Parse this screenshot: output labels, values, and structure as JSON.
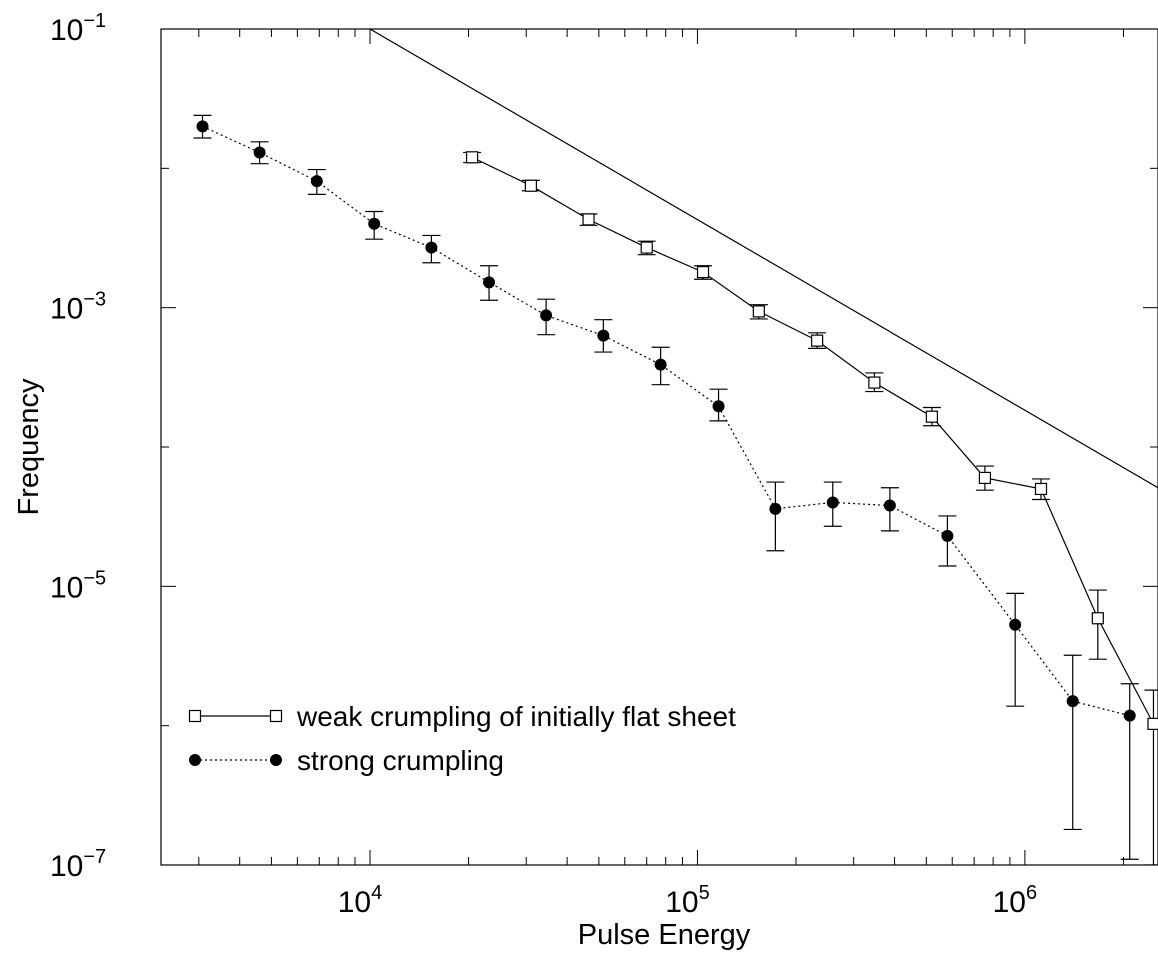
{
  "chart_data": {
    "type": "scatter",
    "xlabel": "Pulse Energy",
    "ylabel": "Frequency",
    "xscale": "log",
    "yscale": "log",
    "xlim": [
      2300,
      2550000
    ],
    "ylim": [
      1e-07,
      0.1
    ],
    "x_ticks": [
      {
        "value": 10000,
        "base": "10",
        "exp": "4"
      },
      {
        "value": 100000,
        "base": "10",
        "exp": "5"
      },
      {
        "value": 1000000,
        "base": "10",
        "exp": "6"
      }
    ],
    "y_ticks": [
      {
        "value": 1e-07,
        "base": "10",
        "exp": "−7"
      },
      {
        "value": 1e-05,
        "base": "10",
        "exp": "−5"
      },
      {
        "value": 0.001,
        "base": "10",
        "exp": "−3"
      },
      {
        "value": 0.1,
        "base": "10",
        "exp": "−1"
      }
    ],
    "legend_position": "bottom-left",
    "reference_line": {
      "x": [
        10000,
        2550000
      ],
      "y": [
        0.1,
        5.1e-05
      ]
    },
    "series": [
      {
        "name": "weak crumpling of initially flat sheet",
        "marker": "open-square",
        "line": "solid",
        "points": [
          {
            "x": 20500,
            "y": 0.012,
            "lo": 0.011,
            "hi": 0.013
          },
          {
            "x": 31000,
            "y": 0.0075,
            "lo": 0.0069,
            "hi": 0.0082
          },
          {
            "x": 46500,
            "y": 0.0043,
            "lo": 0.0039,
            "hi": 0.0047
          },
          {
            "x": 70000,
            "y": 0.0027,
            "lo": 0.0024,
            "hi": 0.003
          },
          {
            "x": 104000,
            "y": 0.0018,
            "lo": 0.0016,
            "hi": 0.002
          },
          {
            "x": 154000,
            "y": 0.00094,
            "lo": 0.00083,
            "hi": 0.00105
          },
          {
            "x": 232000,
            "y": 0.00058,
            "lo": 0.00051,
            "hi": 0.00066
          },
          {
            "x": 347000,
            "y": 0.00029,
            "lo": 0.00025,
            "hi": 0.00034
          },
          {
            "x": 520000,
            "y": 0.000165,
            "lo": 0.000142,
            "hi": 0.000192
          },
          {
            "x": 755000,
            "y": 6e-05,
            "lo": 4.9e-05,
            "hi": 7.3e-05
          },
          {
            "x": 1120000,
            "y": 5e-05,
            "lo": 4.2e-05,
            "hi": 5.9e-05
          },
          {
            "x": 1670000,
            "y": 5.9e-06,
            "lo": 3e-06,
            "hi": 9.4e-06
          },
          {
            "x": 2470000,
            "y": 1.03e-06,
            "lo": 1e-07,
            "hi": 1.8e-06
          }
        ]
      },
      {
        "name": "strong crumpling",
        "marker": "filled-circle",
        "line": "dotted",
        "points": [
          {
            "x": 3080,
            "y": 0.02,
            "lo": 0.0165,
            "hi": 0.024
          },
          {
            "x": 4600,
            "y": 0.013,
            "lo": 0.0108,
            "hi": 0.0155
          },
          {
            "x": 6880,
            "y": 0.0081,
            "lo": 0.0065,
            "hi": 0.0098
          },
          {
            "x": 10300,
            "y": 0.004,
            "lo": 0.0031,
            "hi": 0.0049
          },
          {
            "x": 15400,
            "y": 0.0027,
            "lo": 0.0021,
            "hi": 0.0033
          },
          {
            "x": 23100,
            "y": 0.00152,
            "lo": 0.00113,
            "hi": 0.002
          },
          {
            "x": 34500,
            "y": 0.00088,
            "lo": 0.00064,
            "hi": 0.00115
          },
          {
            "x": 51600,
            "y": 0.00063,
            "lo": 0.00048,
            "hi": 0.00082
          },
          {
            "x": 77200,
            "y": 0.00039,
            "lo": 0.00028,
            "hi": 0.00052
          },
          {
            "x": 116000,
            "y": 0.000196,
            "lo": 0.000154,
            "hi": 0.00026
          },
          {
            "x": 173000,
            "y": 3.6e-05,
            "lo": 1.8e-05,
            "hi": 5.6e-05
          },
          {
            "x": 259000,
            "y": 4e-05,
            "lo": 2.7e-05,
            "hi": 5.6e-05
          },
          {
            "x": 387000,
            "y": 3.8e-05,
            "lo": 2.5e-05,
            "hi": 5.1e-05
          },
          {
            "x": 580000,
            "y": 2.3e-05,
            "lo": 1.4e-05,
            "hi": 3.2e-05
          },
          {
            "x": 934000,
            "y": 5.3e-06,
            "lo": 1.38e-06,
            "hi": 8.9e-06
          },
          {
            "x": 1400000,
            "y": 1.5e-06,
            "lo": 1.8e-07,
            "hi": 3.2e-06
          },
          {
            "x": 2090000,
            "y": 1.18e-06,
            "lo": 1.1e-07,
            "hi": 2e-06
          }
        ]
      }
    ]
  }
}
